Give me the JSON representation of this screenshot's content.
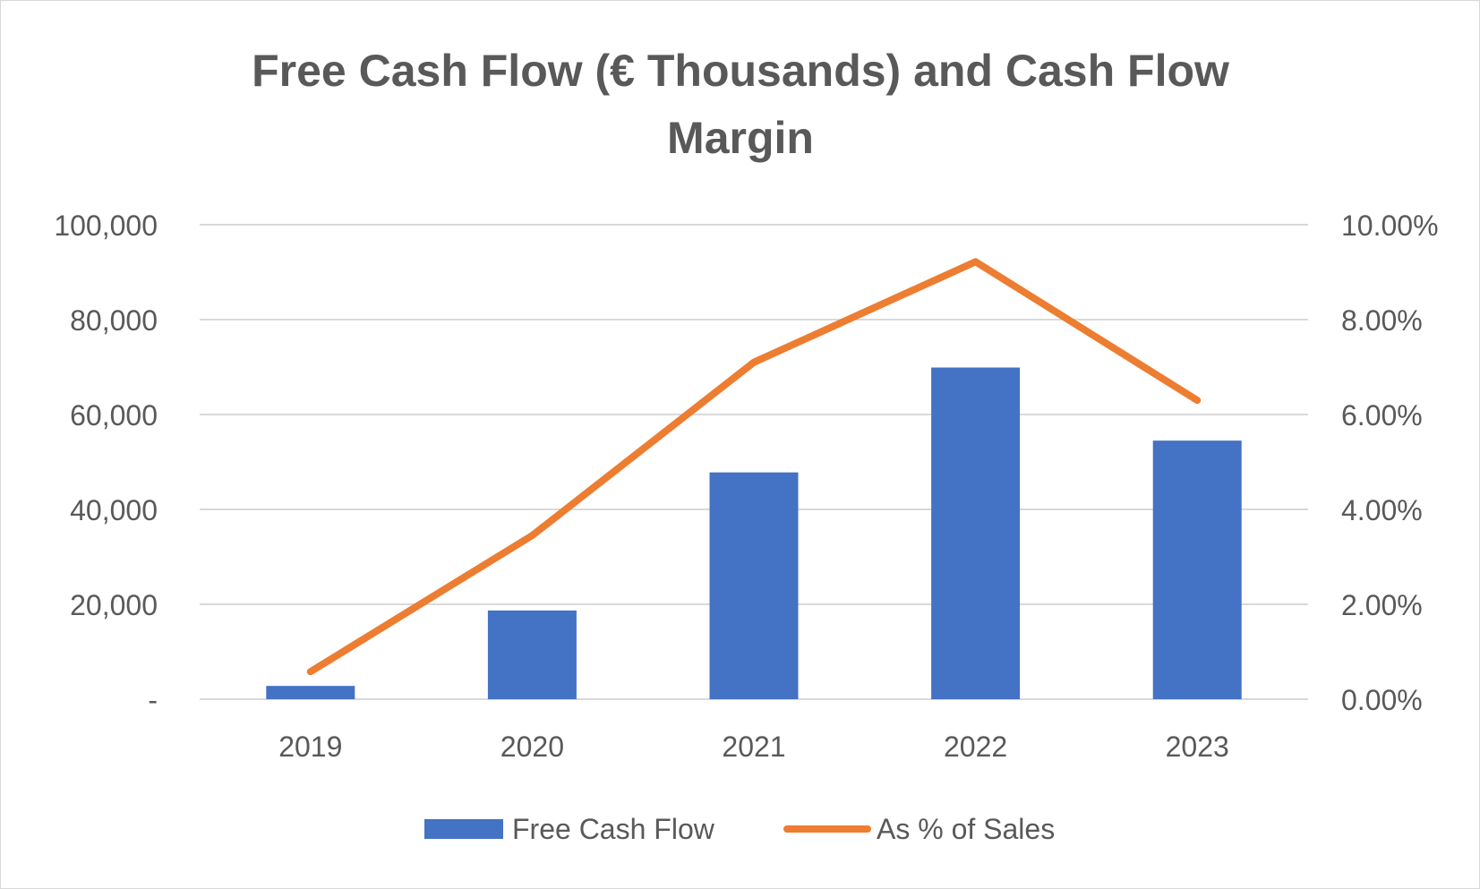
{
  "chart_data": {
    "type": "bar",
    "title": "Free Cash Flow (€ Thousands) and Cash Flow",
    "title_line2": "Margin",
    "categories": [
      "2019",
      "2020",
      "2021",
      "2022",
      "2023"
    ],
    "series": [
      {
        "name": "Free Cash Flow",
        "type": "bar",
        "axis": "left",
        "color": "#4472C4",
        "values": [
          2800,
          18700,
          47800,
          69900,
          54500
        ]
      },
      {
        "name": "As % of Sales",
        "type": "line",
        "axis": "right",
        "color": "#ED7D31",
        "values": [
          0.0058,
          0.0345,
          0.071,
          0.0922,
          0.063
        ]
      }
    ],
    "y_left": {
      "min": 0,
      "max": 100000,
      "ticks": [
        "-",
        "20,000",
        "40,000",
        "60,000",
        "80,000",
        "100,000"
      ]
    },
    "y_right": {
      "min": 0,
      "max": 0.1,
      "ticks": [
        "0.00%",
        "2.00%",
        "4.00%",
        "6.00%",
        "8.00%",
        "10.00%"
      ]
    },
    "grid": true,
    "legend_position": "bottom"
  }
}
